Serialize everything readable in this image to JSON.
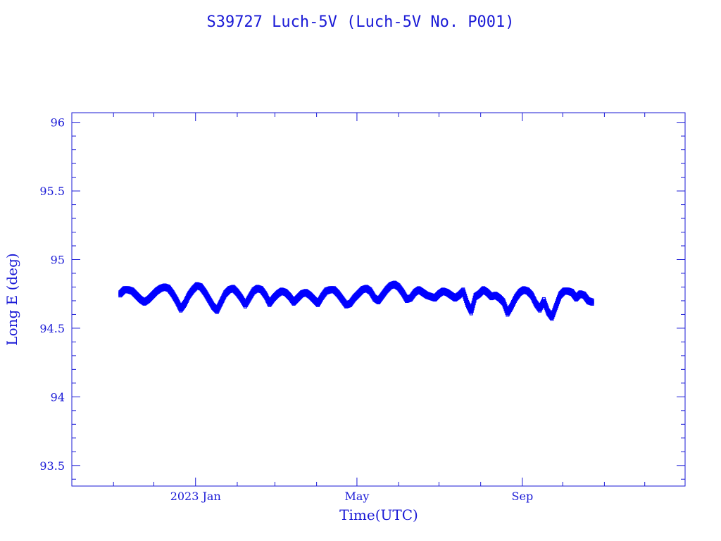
{
  "chart_data": {
    "type": "scatter",
    "title": "S39727 Luch-5V  (Luch-5V No. P001)",
    "xlabel": "Time(UTC)",
    "ylabel": "Long E (deg)",
    "x_ticks": [
      {
        "date": "2023-01-01",
        "label": "2023 Jan"
      },
      {
        "date": "2023-05-01",
        "label": "May"
      },
      {
        "date": "2023-09-01",
        "label": "Sep"
      }
    ],
    "xlim": [
      "2022-10-01",
      "2023-12-31"
    ],
    "ylim": [
      93.35,
      96.07
    ],
    "y_ticks": [
      93.5,
      94,
      94.5,
      95,
      95.5,
      96
    ],
    "y_tick_labels": [
      "93.5",
      "94",
      "94.5",
      "95",
      "95.5",
      "96"
    ],
    "grid": false,
    "series": [
      {
        "color": "#0000ff",
        "marker": "square",
        "points": [
          [
            "2022-11-06",
            94.75
          ],
          [
            "2022-11-09",
            94.78
          ],
          [
            "2022-11-12",
            94.78
          ],
          [
            "2022-11-15",
            94.77
          ],
          [
            "2022-11-18",
            94.74
          ],
          [
            "2022-11-21",
            94.71
          ],
          [
            "2022-11-24",
            94.69
          ],
          [
            "2022-11-27",
            94.71
          ],
          [
            "2022-11-30",
            94.74
          ],
          [
            "2022-12-03",
            94.77
          ],
          [
            "2022-12-06",
            94.79
          ],
          [
            "2022-12-09",
            94.8
          ],
          [
            "2022-12-12",
            94.79
          ],
          [
            "2022-12-15",
            94.75
          ],
          [
            "2022-12-18",
            94.7
          ],
          [
            "2022-12-21",
            94.64
          ],
          [
            "2022-12-24",
            94.68
          ],
          [
            "2022-12-27",
            94.74
          ],
          [
            "2022-12-30",
            94.78
          ],
          [
            "2023-01-02",
            94.81
          ],
          [
            "2023-01-05",
            94.8
          ],
          [
            "2023-01-08",
            94.76
          ],
          [
            "2023-01-11",
            94.71
          ],
          [
            "2023-01-14",
            94.66
          ],
          [
            "2023-01-17",
            94.63
          ],
          [
            "2023-01-20",
            94.69
          ],
          [
            "2023-01-23",
            94.75
          ],
          [
            "2023-01-26",
            94.78
          ],
          [
            "2023-01-29",
            94.79
          ],
          [
            "2023-02-01",
            94.76
          ],
          [
            "2023-02-04",
            94.72
          ],
          [
            "2023-02-07",
            94.67
          ],
          [
            "2023-02-10",
            94.72
          ],
          [
            "2023-02-13",
            94.77
          ],
          [
            "2023-02-16",
            94.79
          ],
          [
            "2023-02-19",
            94.78
          ],
          [
            "2023-02-22",
            94.74
          ],
          [
            "2023-02-25",
            94.68
          ],
          [
            "2023-02-28",
            94.72
          ],
          [
            "2023-03-03",
            94.75
          ],
          [
            "2023-03-06",
            94.77
          ],
          [
            "2023-03-09",
            94.76
          ],
          [
            "2023-03-12",
            94.73
          ],
          [
            "2023-03-15",
            94.69
          ],
          [
            "2023-03-18",
            94.72
          ],
          [
            "2023-03-21",
            94.75
          ],
          [
            "2023-03-24",
            94.76
          ],
          [
            "2023-03-27",
            94.74
          ],
          [
            "2023-03-30",
            94.71
          ],
          [
            "2023-04-02",
            94.68
          ],
          [
            "2023-04-05",
            94.73
          ],
          [
            "2023-04-08",
            94.77
          ],
          [
            "2023-04-11",
            94.78
          ],
          [
            "2023-04-14",
            94.78
          ],
          [
            "2023-04-17",
            94.75
          ],
          [
            "2023-04-20",
            94.71
          ],
          [
            "2023-04-23",
            94.67
          ],
          [
            "2023-04-26",
            94.68
          ],
          [
            "2023-04-29",
            94.72
          ],
          [
            "2023-05-02",
            94.75
          ],
          [
            "2023-05-05",
            94.78
          ],
          [
            "2023-05-08",
            94.79
          ],
          [
            "2023-05-11",
            94.77
          ],
          [
            "2023-05-14",
            94.72
          ],
          [
            "2023-05-17",
            94.7
          ],
          [
            "2023-05-20",
            94.74
          ],
          [
            "2023-05-23",
            94.78
          ],
          [
            "2023-05-26",
            94.81
          ],
          [
            "2023-05-29",
            94.82
          ],
          [
            "2023-06-01",
            94.8
          ],
          [
            "2023-06-04",
            94.76
          ],
          [
            "2023-06-07",
            94.71
          ],
          [
            "2023-06-10",
            94.72
          ],
          [
            "2023-06-13",
            94.76
          ],
          [
            "2023-06-16",
            94.78
          ],
          [
            "2023-06-19",
            94.76
          ],
          [
            "2023-06-22",
            94.74
          ],
          [
            "2023-06-25",
            94.73
          ],
          [
            "2023-06-28",
            94.72
          ],
          [
            "2023-07-01",
            94.75
          ],
          [
            "2023-07-04",
            94.77
          ],
          [
            "2023-07-07",
            94.76
          ],
          [
            "2023-07-10",
            94.74
          ],
          [
            "2023-07-13",
            94.72
          ],
          [
            "2023-07-16",
            94.74
          ],
          [
            "2023-07-19",
            94.77
          ],
          [
            "2023-07-22",
            94.68
          ],
          [
            "2023-07-25",
            94.62
          ],
          [
            "2023-07-28",
            94.73
          ],
          [
            "2023-07-31",
            94.75
          ],
          [
            "2023-08-03",
            94.78
          ],
          [
            "2023-08-06",
            94.76
          ],
          [
            "2023-08-09",
            94.73
          ],
          [
            "2023-08-12",
            94.74
          ],
          [
            "2023-08-15",
            94.72
          ],
          [
            "2023-08-18",
            94.69
          ],
          [
            "2023-08-21",
            94.61
          ],
          [
            "2023-08-24",
            94.66
          ],
          [
            "2023-08-27",
            94.72
          ],
          [
            "2023-08-30",
            94.76
          ],
          [
            "2023-09-02",
            94.78
          ],
          [
            "2023-09-05",
            94.77
          ],
          [
            "2023-09-08",
            94.74
          ],
          [
            "2023-09-11",
            94.68
          ],
          [
            "2023-09-14",
            94.64
          ],
          [
            "2023-09-17",
            94.7
          ],
          [
            "2023-09-20",
            94.62
          ],
          [
            "2023-09-23",
            94.58
          ],
          [
            "2023-09-26",
            94.66
          ],
          [
            "2023-09-29",
            94.74
          ],
          [
            "2023-10-02",
            94.77
          ],
          [
            "2023-10-05",
            94.77
          ],
          [
            "2023-10-08",
            94.76
          ],
          [
            "2023-10-11",
            94.72
          ],
          [
            "2023-10-14",
            94.75
          ],
          [
            "2023-10-17",
            94.74
          ],
          [
            "2023-10-20",
            94.7
          ],
          [
            "2023-10-23",
            94.69
          ]
        ]
      }
    ]
  }
}
